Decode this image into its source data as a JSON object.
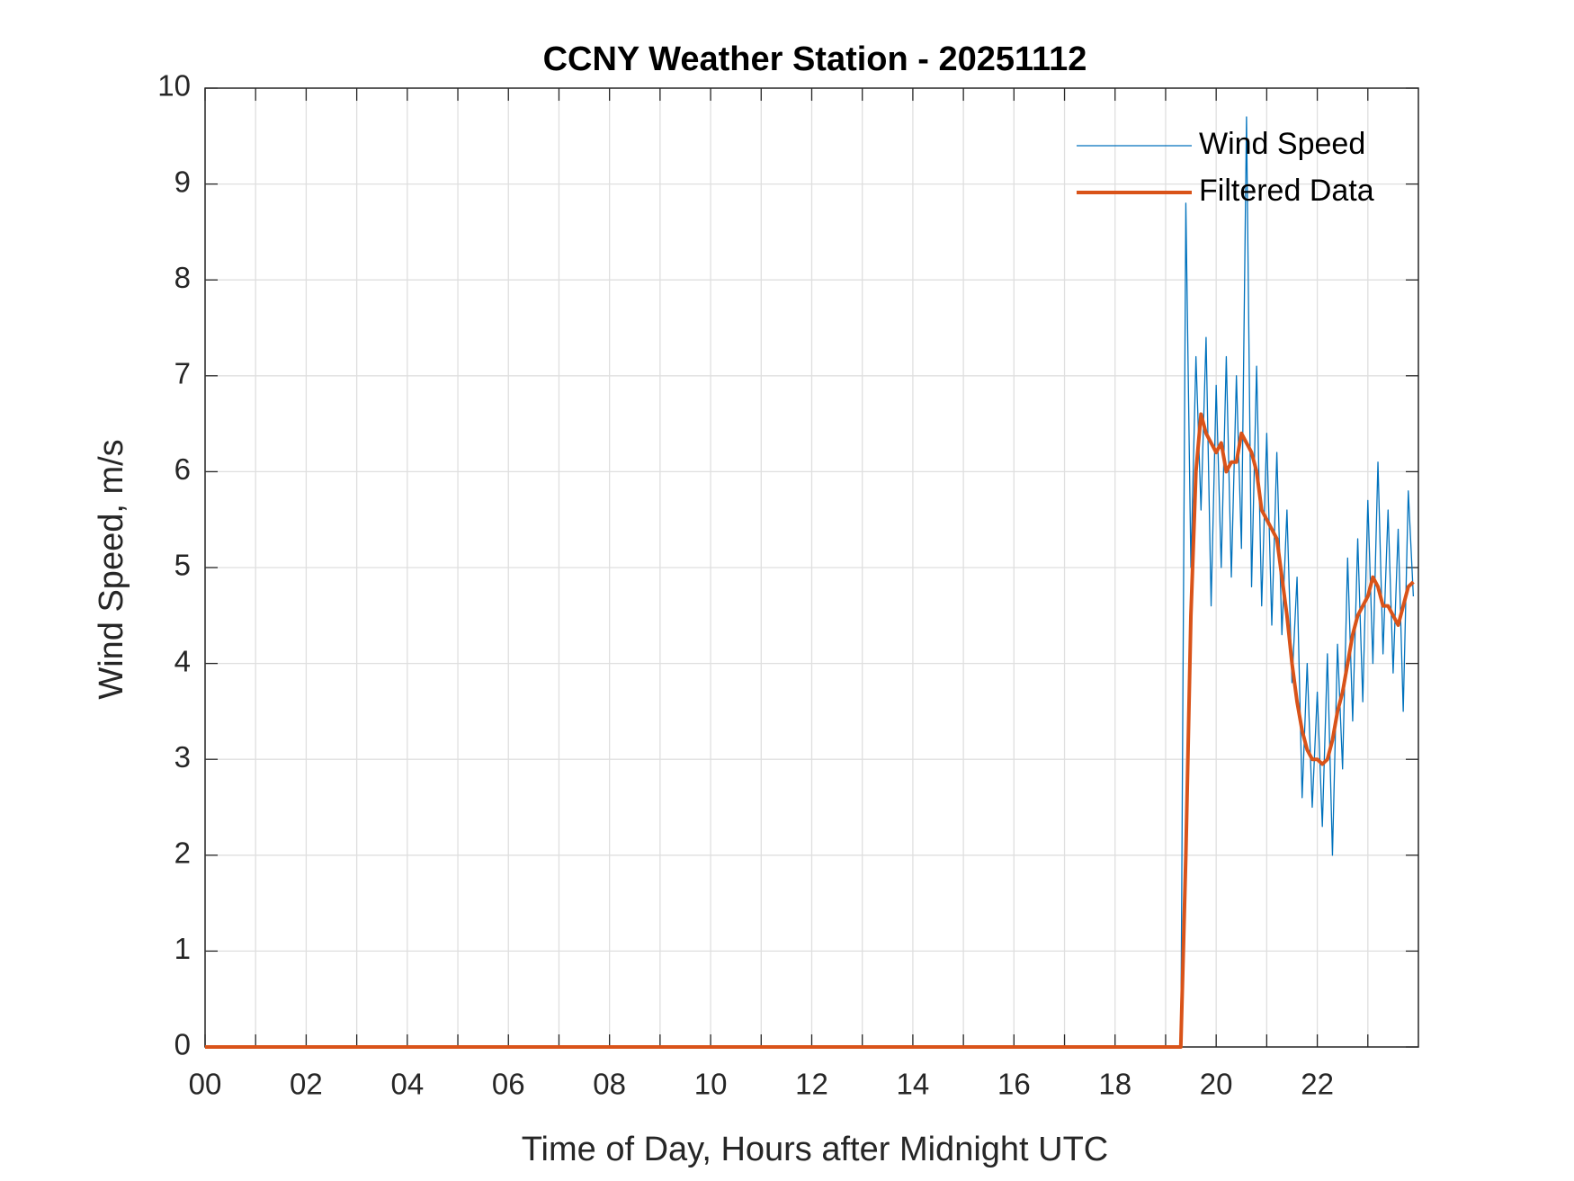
{
  "chart_data": {
    "type": "line",
    "title": "CCNY Weather Station - 20251112",
    "xlabel": "Time of Day, Hours after Midnight UTC",
    "ylabel": "Wind Speed, m/s",
    "x": [
      0,
      19.3,
      19.4,
      19.5,
      19.6,
      19.7,
      19.8,
      19.9,
      20.0,
      20.1,
      20.2,
      20.3,
      20.4,
      20.5,
      20.6,
      20.7,
      20.8,
      20.9,
      21.0,
      21.1,
      21.2,
      21.3,
      21.4,
      21.5,
      21.6,
      21.7,
      21.8,
      21.9,
      22.0,
      22.1,
      22.2,
      22.3,
      22.4,
      22.5,
      22.6,
      22.7,
      22.8,
      22.9,
      23.0,
      23.1,
      23.2,
      23.3,
      23.4,
      23.5,
      23.6,
      23.7,
      23.8,
      23.9
    ],
    "series": [
      {
        "name": "Wind Speed",
        "color": "#0072bd",
        "width": 1.3,
        "values": [
          0,
          0,
          8.8,
          5.0,
          7.2,
          5.6,
          7.4,
          4.6,
          6.9,
          5.0,
          7.2,
          4.9,
          7.0,
          5.2,
          9.7,
          4.8,
          7.1,
          4.6,
          6.4,
          4.4,
          6.2,
          4.3,
          5.6,
          3.8,
          4.9,
          2.6,
          4.0,
          2.5,
          3.7,
          2.3,
          4.1,
          2.0,
          4.2,
          2.9,
          5.1,
          3.4,
          5.3,
          3.6,
          5.7,
          4.0,
          6.1,
          4.1,
          5.6,
          3.9,
          5.4,
          3.5,
          5.8,
          4.7
        ]
      },
      {
        "name": "Filtered Data",
        "color": "#d95319",
        "width": 4,
        "values": [
          0,
          0,
          2.0,
          4.5,
          6.0,
          6.6,
          6.4,
          6.3,
          6.2,
          6.3,
          6.0,
          6.1,
          6.1,
          6.4,
          6.3,
          6.2,
          6.0,
          5.6,
          5.5,
          5.4,
          5.3,
          4.9,
          4.5,
          4.0,
          3.6,
          3.3,
          3.1,
          3.0,
          3.0,
          2.95,
          3.0,
          3.2,
          3.5,
          3.7,
          4.0,
          4.3,
          4.5,
          4.6,
          4.7,
          4.9,
          4.8,
          4.6,
          4.6,
          4.5,
          4.4,
          4.6,
          4.8,
          4.85
        ]
      }
    ],
    "xlim": [
      0,
      24
    ],
    "xticks": [
      {
        "value": 0,
        "label": "00"
      },
      {
        "value": 2,
        "label": "02"
      },
      {
        "value": 4,
        "label": "04"
      },
      {
        "value": 6,
        "label": "06"
      },
      {
        "value": 8,
        "label": "08"
      },
      {
        "value": 10,
        "label": "10"
      },
      {
        "value": 12,
        "label": "12"
      },
      {
        "value": 14,
        "label": "14"
      },
      {
        "value": 16,
        "label": "16"
      },
      {
        "value": 18,
        "label": "18"
      },
      {
        "value": 20,
        "label": "20"
      },
      {
        "value": 22,
        "label": "22"
      }
    ],
    "xminorticks": [
      1,
      3,
      5,
      7,
      9,
      11,
      13,
      15,
      17,
      19,
      21,
      23
    ],
    "ylim": [
      0,
      10
    ],
    "yticks": [
      0,
      1,
      2,
      3,
      4,
      5,
      6,
      7,
      8,
      9,
      10
    ],
    "grid": true,
    "legend": "northeast"
  }
}
